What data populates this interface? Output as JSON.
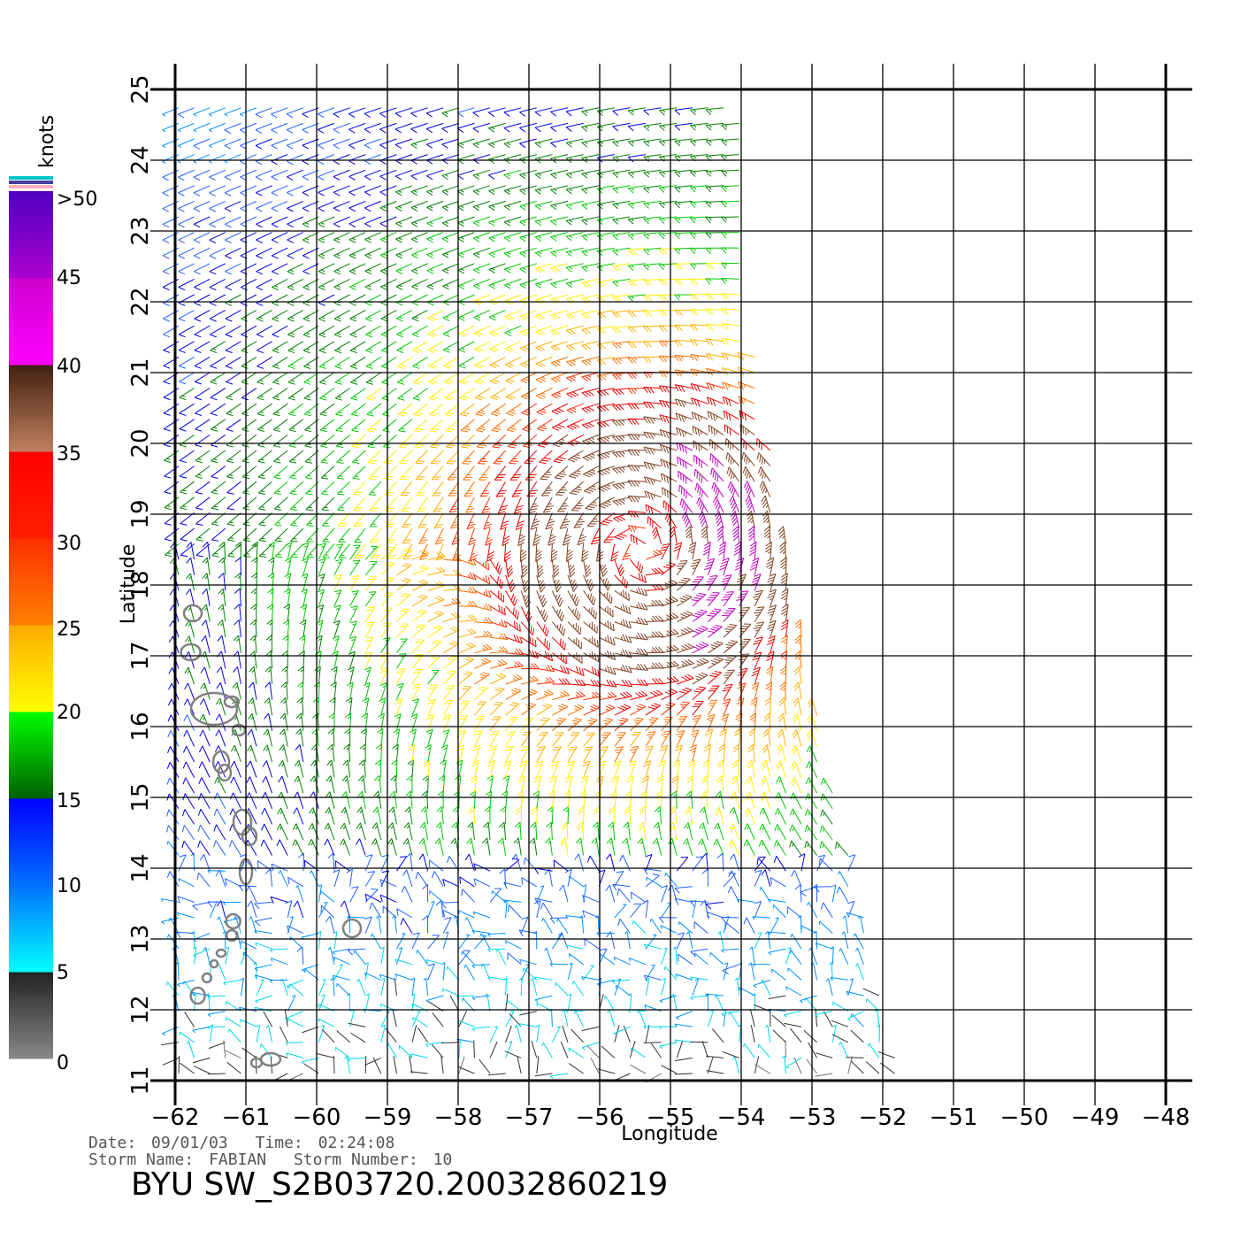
{
  "map": {
    "x_axis_label": "Longitude",
    "y_axis_label": "Latitude",
    "x_ticks": [
      -62,
      -61,
      -60,
      -59,
      -58,
      -57,
      -56,
      -55,
      -54,
      -53,
      -52,
      -51,
      -50,
      -49,
      -48
    ],
    "y_ticks": [
      11,
      12,
      13,
      14,
      15,
      16,
      17,
      18,
      19,
      20,
      21,
      22,
      23,
      24,
      25
    ],
    "x_range": [
      -62,
      -48
    ],
    "y_range": [
      11,
      25
    ],
    "grid": true,
    "storm_center": {
      "lon": -55.4,
      "lat": 18.5
    },
    "coastline_color": "#808080"
  },
  "colorbar": {
    "unit": "knots",
    "labels": [
      ">50",
      "45",
      "40",
      "35",
      "30",
      "25",
      "20",
      "15",
      "10",
      "5",
      "0"
    ],
    "bands": [
      {
        "from": 0,
        "to": 5,
        "colors": [
          "#888888",
          "#222222"
        ]
      },
      {
        "from": 5,
        "to": 10,
        "colors": [
          "#00ffff",
          "#0070ff"
        ]
      },
      {
        "from": 10,
        "to": 15,
        "colors": [
          "#0070ff",
          "#0000ff"
        ]
      },
      {
        "from": 15,
        "to": 20,
        "colors": [
          "#006000",
          "#00ff00"
        ]
      },
      {
        "from": 20,
        "to": 25,
        "colors": [
          "#ffff00",
          "#ffaa00"
        ]
      },
      {
        "from": 25,
        "to": 30,
        "colors": [
          "#ff8000",
          "#ff3000"
        ]
      },
      {
        "from": 30,
        "to": 35,
        "colors": [
          "#ff2000",
          "#ff0000"
        ]
      },
      {
        "from": 35,
        "to": 40,
        "colors": [
          "#c08060",
          "#402010"
        ]
      },
      {
        "from": 40,
        "to": 45,
        "colors": [
          "#ff00ff",
          "#cc00cc"
        ]
      },
      {
        "from": 45,
        "to": 50,
        "colors": [
          "#aa00cc",
          "#5000c0"
        ]
      }
    ]
  },
  "info": {
    "date_label": "Date:",
    "date": "09/01/03",
    "time_label": "Time:",
    "time": "02:24:08",
    "storm_name_label": "Storm Name:",
    "storm_name": "FABIAN",
    "storm_number_label": "Storm Number:",
    "storm_number": "10",
    "title": "BYU SW_S2B03720.20032860219"
  }
}
